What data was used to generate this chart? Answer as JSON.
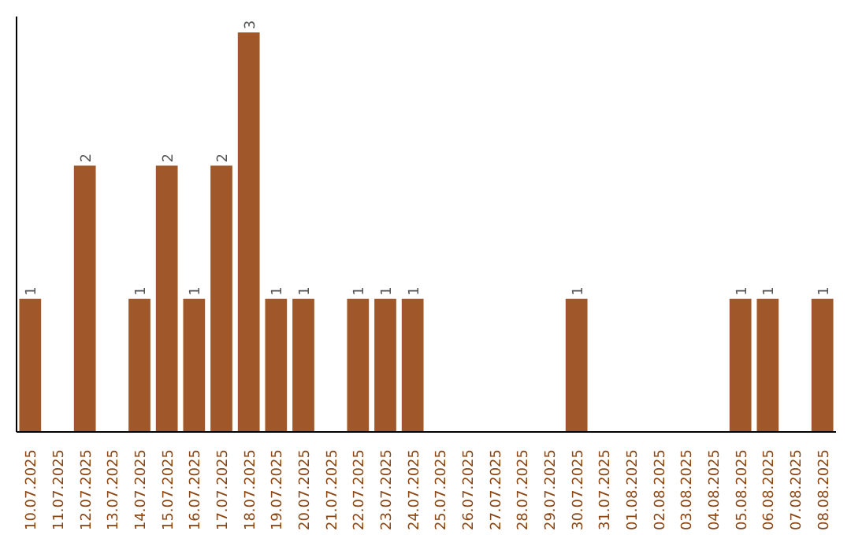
{
  "chart_data": {
    "type": "bar",
    "categories": [
      "10.07.2025",
      "11.07.2025",
      "12.07.2025",
      "13.07.2025",
      "14.07.2025",
      "15.07.2025",
      "16.07.2025",
      "17.07.2025",
      "18.07.2025",
      "19.07.2025",
      "20.07.2025",
      "21.07.2025",
      "22.07.2025",
      "23.07.2025",
      "24.07.2025",
      "25.07.2025",
      "26.07.2025",
      "27.07.2025",
      "28.07.2025",
      "29.07.2025",
      "30.07.2025",
      "31.07.2025",
      "01.08.2025",
      "02.08.2025",
      "03.08.2025",
      "04.08.2025",
      "05.08.2025",
      "06.08.2025",
      "07.08.2025",
      "08.08.2025"
    ],
    "values": [
      1,
      0,
      2,
      0,
      1,
      2,
      1,
      2,
      3,
      1,
      1,
      0,
      1,
      1,
      1,
      0,
      0,
      0,
      0,
      0,
      1,
      0,
      0,
      0,
      0,
      0,
      1,
      1,
      0,
      1
    ],
    "value_labels": [
      "1",
      null,
      "2",
      null,
      "1",
      "2",
      "1",
      "2",
      "3",
      "1",
      "1",
      null,
      "1",
      "1",
      "1",
      null,
      null,
      null,
      null,
      null,
      "1",
      null,
      null,
      null,
      null,
      null,
      "1",
      "1",
      null,
      "1"
    ],
    "color": "#a0582a",
    "tick_labels": "x",
    "grid": false
  }
}
